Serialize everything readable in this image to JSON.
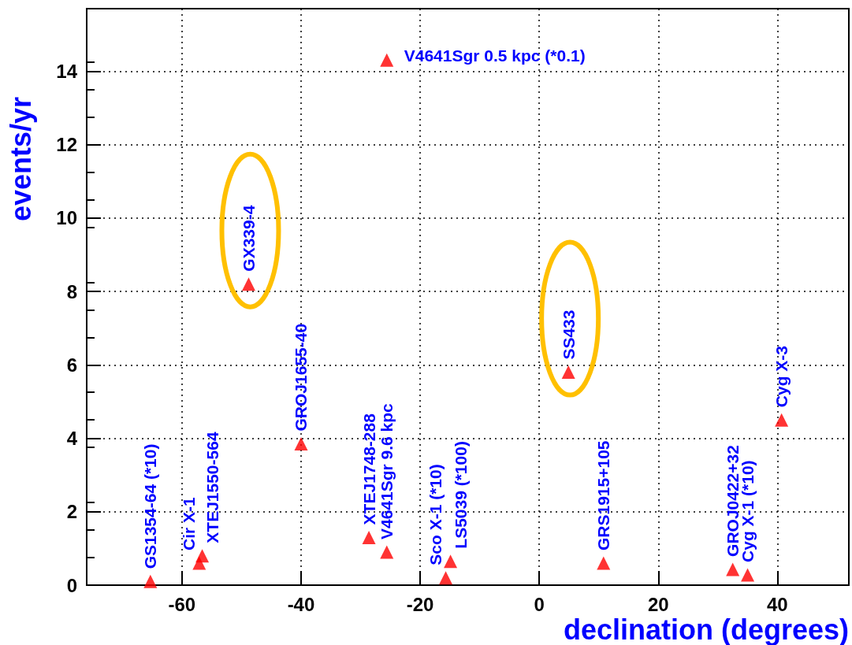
{
  "chart_data": {
    "type": "scatter",
    "xlabel": "declination (degrees)",
    "ylabel": "events/yr",
    "xlim": [
      -76,
      52
    ],
    "xticks": [
      -60,
      -40,
      -20,
      0,
      20,
      40
    ],
    "ylim": [
      0,
      15.7
    ],
    "yticks": [
      0,
      2,
      4,
      6,
      8,
      10,
      12,
      14
    ],
    "grid": true,
    "marker": "triangle",
    "series": [
      {
        "color": "#ff0000",
        "x": [
          -65.3,
          -57.1,
          -56.6,
          -40,
          -28.6,
          -25.6,
          -25.6,
          -15.7,
          -14.9,
          10.8,
          32.5,
          35,
          40.7
        ],
        "values": [
          0.1,
          0.6,
          0.8,
          3.85,
          1.3,
          0.9,
          14.3,
          0.2,
          0.65,
          0.6,
          0.43,
          0.28,
          4.5
        ]
      },
      {
        "color": "#ff0000",
        "x": [
          -48.8,
          4.9
        ],
        "values": [
          8.2,
          5.8
        ]
      }
    ],
    "annotations": [
      {
        "text": "GS1354-64 (*10)",
        "x": -65.3,
        "y": 0.1
      },
      {
        "text": "Cir X-1",
        "x": -57.1,
        "y": 0.6
      },
      {
        "text": "XTEJ1550-564",
        "x": -56.6,
        "y": 0.8
      },
      {
        "text": "GX339-4",
        "x": -48.8,
        "y": 8.2
      },
      {
        "text": "GROJ1655-40",
        "x": -40,
        "y": 3.85
      },
      {
        "text": "XTEJ1748-288",
        "x": -28.6,
        "y": 1.3
      },
      {
        "text": "V4641Sgr 9.6 kpc",
        "x": -25.6,
        "y": 0.9
      },
      {
        "text": "V4641Sgr 0.5 kpc (*0.1)",
        "x": -25.6,
        "y": 14.3
      },
      {
        "text": "Sco X-1 (*10)",
        "x": -15.7,
        "y": 0.2
      },
      {
        "text": "LS5039 (*100)",
        "x": -14.9,
        "y": 0.65
      },
      {
        "text": "SS433",
        "x": 4.9,
        "y": 5.8
      },
      {
        "text": "GRS1915+105",
        "x": 10.8,
        "y": 0.6
      },
      {
        "text": "GROJ0422+32",
        "x": 32.5,
        "y": 0.43
      },
      {
        "text": "Cyg X-1 (*10)",
        "x": 35,
        "y": 0.28
      },
      {
        "text": "Cyg X-3",
        "x": 40.7,
        "y": 4.5
      }
    ]
  }
}
